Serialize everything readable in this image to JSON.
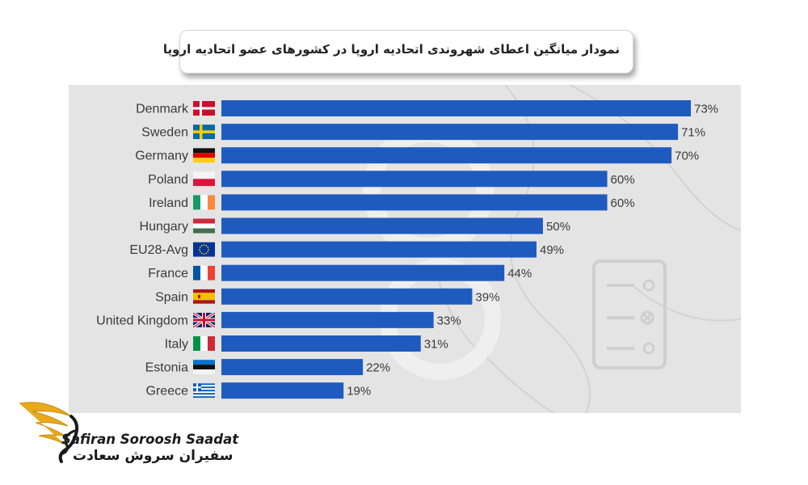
{
  "title": "نمودار میانگین اعطای شهروندی اتحادیه اروپا در کشورهای عضو اتحادیه اروپا",
  "brand": {
    "name_en": "Safiran Soroosh Saadat",
    "name_fa": "سفیران سروش سعادت",
    "logo_icon": "golden-wing-logo"
  },
  "colors": {
    "bar": "#1f5bbf",
    "panel": "#e4e4e4",
    "logo_gold": "#e8a91a"
  },
  "chart_data": {
    "type": "bar",
    "orientation": "horizontal",
    "categories": [
      "Denmark",
      "Sweden",
      "Germany",
      "Poland",
      "Ireland",
      "Hungary",
      "EU28-Avg",
      "France",
      "Spain",
      "United Kingdom",
      "Italy",
      "Estonia",
      "Greece"
    ],
    "values": [
      73,
      71,
      70,
      60,
      60,
      50,
      49,
      44,
      39,
      33,
      31,
      22,
      19
    ],
    "value_labels": [
      "73%",
      "71%",
      "70%",
      "60%",
      "60%",
      "50%",
      "49%",
      "44%",
      "39%",
      "33%",
      "31%",
      "22%",
      "19%"
    ],
    "flags": [
      "denmark-flag-icon",
      "sweden-flag-icon",
      "germany-flag-icon",
      "poland-flag-icon",
      "ireland-flag-icon",
      "hungary-flag-icon",
      "eu-flag-icon",
      "france-flag-icon",
      "spain-flag-icon",
      "uk-flag-icon",
      "italy-flag-icon",
      "estonia-flag-icon",
      "greece-flag-icon"
    ],
    "xlim": [
      0,
      73
    ],
    "grid": false,
    "legend": "none"
  }
}
